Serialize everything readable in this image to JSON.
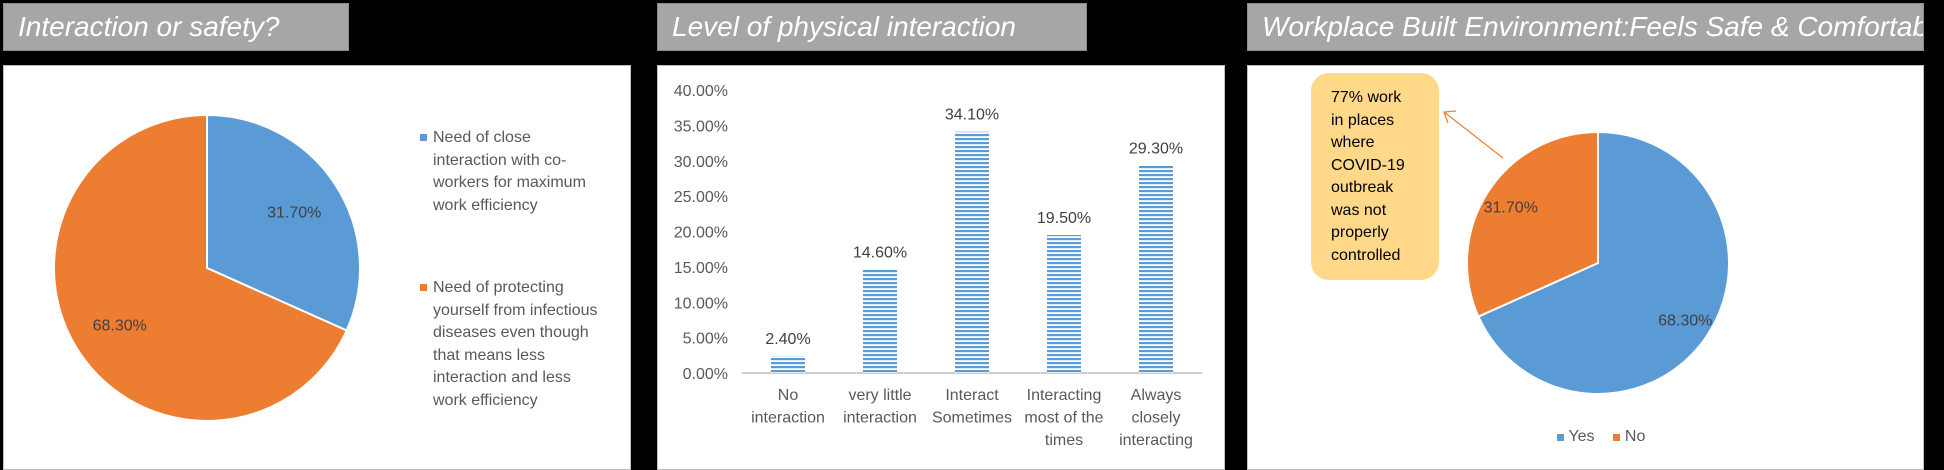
{
  "titles": {
    "left": "Interaction or safety?",
    "middle": "Level of physical interaction",
    "right": "Workplace Built Environment:Feels Safe & Comfortable?"
  },
  "colors": {
    "blue": "#5b9bd5",
    "orange": "#ed7d31",
    "callout": "#ffd889"
  },
  "chart_data": [
    {
      "type": "pie",
      "title": "Interaction or safety?",
      "slices": [
        {
          "label": "Need of close interaction with co-workers for maximum work efficiency",
          "value": 31.7,
          "display": "31.70%"
        },
        {
          "label": "Need of protecting yourself from infectious diseases even though that means less interaction and less work efficiency",
          "value": 68.3,
          "display": "68.30%"
        }
      ],
      "legend": {
        "placement": "right",
        "item1_lines": [
          "Need of close",
          "interaction with co-",
          "workers for maximum",
          "work efficiency"
        ],
        "item2_lines": [
          "Need of protecting",
          "yourself from infectious",
          "diseases even though",
          "that means less",
          "interaction and less",
          "work efficiency"
        ]
      }
    },
    {
      "type": "bar",
      "title": "Level of physical interaction",
      "categories": [
        "No interaction",
        "very little interaction",
        "Interact Sometimes",
        "Interacting most of the times",
        "Always closely interacting"
      ],
      "category_lines": [
        [
          "No",
          "interaction"
        ],
        [
          "very little",
          "interaction"
        ],
        [
          "Interact",
          "Sometimes"
        ],
        [
          "Interacting",
          "most of the",
          "times"
        ],
        [
          "Always",
          "closely",
          "interacting"
        ]
      ],
      "values": [
        2.4,
        14.6,
        34.1,
        19.5,
        29.3
      ],
      "data_labels": [
        "2.40%",
        "14.60%",
        "34.10%",
        "19.50%",
        "29.30%"
      ],
      "ylim": [
        0,
        40
      ],
      "yticks": [
        "0.00%",
        "5.00%",
        "10.00%",
        "15.00%",
        "20.00%",
        "25.00%",
        "30.00%",
        "35.00%",
        "40.00%"
      ],
      "grid": false
    },
    {
      "type": "pie",
      "title": "Workplace Built Environment:Feels Safe & Comfortable?",
      "slices": [
        {
          "label": "Yes",
          "value": 68.3,
          "display": "68.30%"
        },
        {
          "label": "No",
          "value": 31.7,
          "display": "31.70%"
        }
      ],
      "legend": {
        "placement": "bottom",
        "items": [
          "Yes",
          "No"
        ]
      },
      "annotation_lines": [
        "77% work",
        "in places",
        "where",
        "COVID-19",
        "outbreak",
        "was not",
        "properly",
        "controlled"
      ]
    }
  ]
}
